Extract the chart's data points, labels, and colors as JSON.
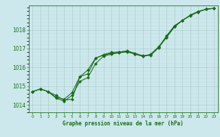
{
  "xlabel": "Graphe pression niveau de la mer (hPa)",
  "background_color": "#cce8ec",
  "grid_color_major": "#aacccc",
  "grid_color_minor": "#c0d8dc",
  "line_color": "#1a6b1a",
  "marker_color": "#1a6b1a",
  "ylim": [
    1013.6,
    1019.3
  ],
  "xlim": [
    -0.5,
    23.5
  ],
  "yticks": [
    1014,
    1015,
    1016,
    1017,
    1018
  ],
  "xticks": [
    0,
    1,
    2,
    3,
    4,
    5,
    6,
    7,
    8,
    9,
    10,
    11,
    12,
    13,
    14,
    15,
    16,
    17,
    18,
    19,
    20,
    21,
    22,
    23
  ],
  "line1_y": [
    1014.7,
    1014.85,
    1014.7,
    1014.5,
    1014.25,
    1014.3,
    1015.5,
    1015.85,
    1016.5,
    1016.65,
    1016.75,
    1016.8,
    1016.85,
    1016.7,
    1016.6,
    1016.65,
    1017.05,
    1017.6,
    1018.15,
    1018.5,
    1018.75,
    1018.95,
    1019.1,
    1019.15
  ],
  "line2_y": [
    1014.7,
    1014.85,
    1014.7,
    1014.35,
    1014.2,
    1014.5,
    1015.25,
    1015.45,
    1016.2,
    1016.6,
    1016.7,
    1016.78,
    1016.82,
    1016.72,
    1016.58,
    1016.7,
    1017.1,
    1017.62,
    1018.2,
    1018.5,
    1018.78,
    1018.98,
    1019.1,
    1019.15
  ],
  "line3_y": [
    1014.7,
    1014.85,
    1014.7,
    1014.4,
    1014.3,
    1014.65,
    1015.5,
    1015.65,
    1016.48,
    1016.68,
    1016.8,
    1016.82,
    1016.88,
    1016.75,
    1016.62,
    1016.68,
    1017.08,
    1017.68,
    1018.22,
    1018.5,
    1018.78,
    1018.98,
    1019.1,
    1019.15
  ]
}
